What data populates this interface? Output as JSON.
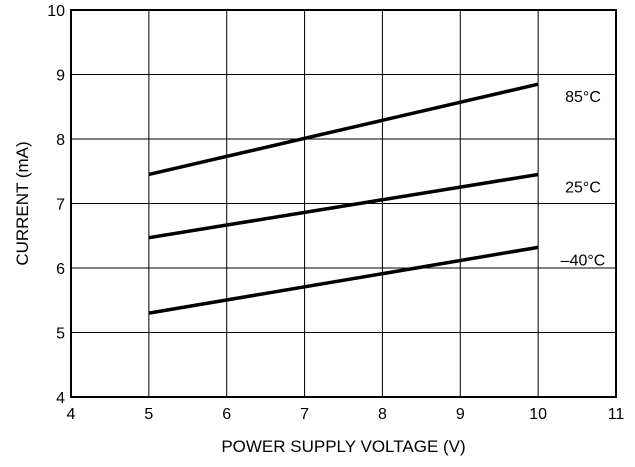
{
  "chart_data": {
    "type": "line",
    "title": "",
    "xlabel": "POWER SUPPLY VOLTAGE (V)",
    "ylabel": "CURRENT (mA)",
    "xlim": [
      4,
      11
    ],
    "ylim": [
      4,
      10
    ],
    "xticks": [
      "4",
      "5",
      "6",
      "7",
      "8",
      "9",
      "10",
      "11"
    ],
    "yticks": [
      "4",
      "5",
      "6",
      "7",
      "8",
      "9",
      "10"
    ],
    "grid": true,
    "legend": "none",
    "series": [
      {
        "name": "85°C",
        "x": [
          5,
          10
        ],
        "y": [
          7.45,
          8.85
        ]
      },
      {
        "name": "25°C",
        "x": [
          5,
          10
        ],
        "y": [
          6.47,
          7.45
        ]
      },
      {
        "name": "–40°C",
        "x": [
          5,
          10
        ],
        "y": [
          5.3,
          6.32
        ]
      }
    ]
  }
}
